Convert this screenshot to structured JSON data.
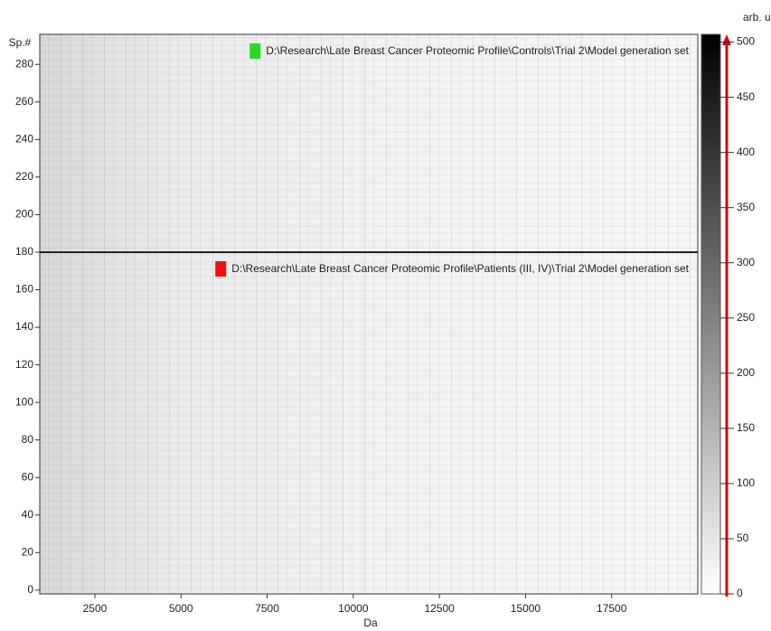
{
  "chart_data": {
    "type": "heatmap",
    "x_label": "Da",
    "y_label": "Sp.#",
    "colorbar_label": "arb. u.",
    "xlim": [
      900,
      20000
    ],
    "xticks": [
      2500,
      5000,
      7500,
      10000,
      12500,
      15000,
      17500
    ],
    "ylim": [
      -2,
      296
    ],
    "yticks": [
      0,
      20,
      40,
      60,
      80,
      100,
      120,
      140,
      160,
      180,
      200,
      220,
      240,
      260,
      280
    ],
    "colorbar_lim": [
      0,
      507
    ],
    "colorbar_ticks": [
      0,
      50,
      100,
      150,
      200,
      250,
      300,
      350,
      400,
      450,
      500
    ],
    "panels": [
      {
        "label": "D:\\Research\\Late Breast Cancer Proteomic Profile\\Controls\\Trial 2\\Model generation set",
        "color": "#22dd22",
        "range": [
          180,
          296
        ]
      },
      {
        "label": "D:\\Research\\Late Breast Cancer Proteomic Profile\\Patients (III, IV)\\Trial 2\\Model generation set",
        "color": "#ee1111",
        "range": [
          -2,
          180
        ]
      }
    ]
  }
}
